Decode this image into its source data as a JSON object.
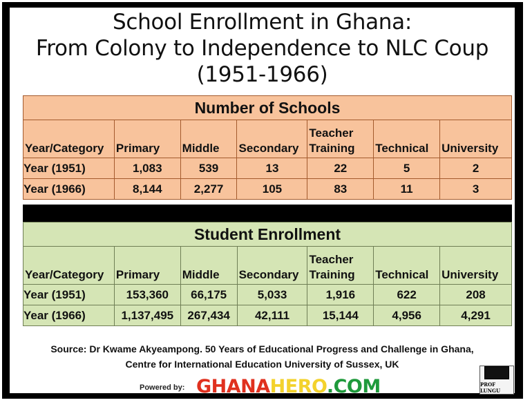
{
  "title": {
    "line1": "School Enrollment in Ghana:",
    "line2": "From Colony to Independence to NLC Coup",
    "line3": "(1951-1966)"
  },
  "columns": [
    "Year/Category",
    "Primary",
    "Middle",
    "Secondary",
    "Teacher Training",
    "Technical",
    "University"
  ],
  "schools": {
    "heading": "Number of Schools",
    "rows": [
      {
        "label": "Year (1951)",
        "values": [
          "1,083",
          "539",
          "13",
          "22",
          "5",
          "2"
        ]
      },
      {
        "label": "Year (1966)",
        "values": [
          "8,144",
          "2,277",
          "105",
          "83",
          "11",
          "3"
        ]
      }
    ]
  },
  "students": {
    "heading": "Student Enrollment",
    "rows": [
      {
        "label": "Year (1951)",
        "values": [
          "153,360",
          "66,175",
          "5,033",
          "1,916",
          "622",
          "208"
        ]
      },
      {
        "label": "Year (1966)",
        "values": [
          "1,137,495",
          "267,434",
          "42,111",
          "15,144",
          "4,956",
          "4,291"
        ]
      }
    ]
  },
  "source": {
    "line1": "Source: Dr Kwame Akyeampong.  50 Years of Educational Progress and Challenge in Ghana,",
    "line2": "Centre for International Education University of Sussex, UK"
  },
  "footer": {
    "powered_label": "Powered by:",
    "brand_part1": "GHANA",
    "brand_part2": "HERO",
    "brand_part3": ".COM",
    "logo_text": "PROF LUNGU"
  },
  "colors": {
    "schools_fill": "#f8c39c",
    "students_fill": "#d5e5b5",
    "brand_red": "#e0311f",
    "brand_yellow": "#f3d22c",
    "brand_green": "#1f9a3c"
  }
}
